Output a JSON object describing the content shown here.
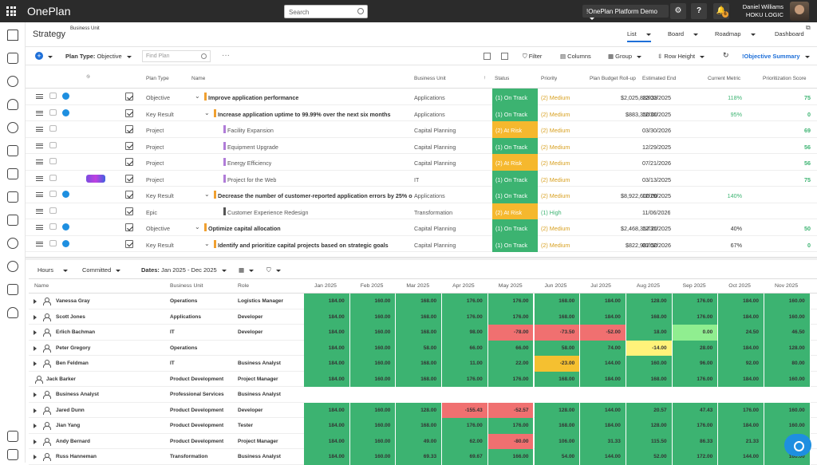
{
  "app": {
    "brand": "OnePlan",
    "search_placeholder": "Search",
    "platform": "!OnePlan Platform Demo",
    "user_name": "Daniel Williams",
    "user_org": "HOKU LOGIC",
    "notif_count": "6"
  },
  "header": {
    "title": "Strategy",
    "business_unit_label": "Business Unit",
    "views": [
      "List",
      "Board",
      "Roadmap",
      "Dashboard"
    ]
  },
  "toolbar": {
    "plan_type_label": "Plan Type:",
    "plan_type_value": "Objective",
    "find_placeholder": "Find Plan",
    "more": "···",
    "filter": "Filter",
    "columns": "Columns",
    "group": "Group",
    "row_height": "Row Height",
    "summary": "!Objective Summary"
  },
  "table1": {
    "headers": [
      "Plan Type",
      "Name",
      "Business Unit",
      "Status",
      "Priority",
      "Plan Budget Roll-up",
      "Estimated End",
      "Current Metric",
      "Prioritization Score"
    ],
    "rows": [
      {
        "type": "Objective",
        "name": "Improve application performance",
        "bu": "Applications",
        "status": "(1) On Track",
        "status_color": "#3cb371",
        "priority": "(2) Medium",
        "budget": "$2,025,883.33",
        "end": "12/01/2025",
        "metric": "118%",
        "score": "75",
        "level": 0,
        "expand": true,
        "bar": "#f0a030",
        "add": true,
        "bold": true
      },
      {
        "type": "Key Result",
        "name": "Increase application uptime to 99.99% over the next six months",
        "bu": "Applications",
        "status": "(1) On Track",
        "status_color": "#3cb371",
        "priority": "(2) Medium",
        "budget": "$883,350.00",
        "end": "12/31/2025",
        "metric": "95%",
        "score": "0",
        "level": 1,
        "expand": true,
        "bar": "#f0a030",
        "add": true,
        "bold": true
      },
      {
        "type": "Project",
        "name": "Facility Expansion",
        "bu": "Capital Planning",
        "status": "(2) At Risk",
        "status_color": "#f5b82e",
        "priority": "(2) Medium",
        "budget": "",
        "end": "03/30/2026",
        "metric": "",
        "score": "69",
        "level": 2,
        "expand": false,
        "bar": "#b07cd8",
        "add": false,
        "bold": false
      },
      {
        "type": "Project",
        "name": "Equipment Upgrade",
        "bu": "Capital Planning",
        "status": "(1) On Track",
        "status_color": "#3cb371",
        "priority": "(2) Medium",
        "budget": "",
        "end": "12/29/2025",
        "metric": "",
        "score": "56",
        "level": 2,
        "expand": false,
        "bar": "#b07cd8",
        "add": false,
        "bold": false
      },
      {
        "type": "Project",
        "name": "Energy Efficiency",
        "bu": "Capital Planning",
        "status": "(2) At Risk",
        "status_color": "#f5b82e",
        "priority": "(2) Medium",
        "budget": "",
        "end": "07/21/2026",
        "metric": "",
        "score": "56",
        "level": 2,
        "expand": false,
        "bar": "#b07cd8",
        "add": false,
        "bold": false
      },
      {
        "type": "Project",
        "name": "Project for the Web",
        "bu": "IT",
        "status": "(1) On Track",
        "status_color": "#3cb371",
        "priority": "(2) Medium",
        "budget": "",
        "end": "03/13/2025",
        "metric": "",
        "score": "75",
        "level": 2,
        "expand": false,
        "bar": "#b07cd8",
        "add": false,
        "bold": false,
        "badge": true
      },
      {
        "type": "Key Result",
        "name": "Decrease the number of customer-reported application errors by 25% o",
        "bu": "Applications",
        "status": "(1) On Track",
        "status_color": "#3cb371",
        "priority": "(2) Medium",
        "budget": "$8,922,600.00",
        "end": "12/29/2025",
        "metric": "140%",
        "score": "",
        "level": 1,
        "expand": true,
        "bar": "#f0a030",
        "add": true,
        "bold": true
      },
      {
        "type": "Epic",
        "name": "Customer Experience Redesign",
        "bu": "Transformation",
        "status": "(2) At Risk",
        "status_color": "#f5b82e",
        "priority": "(1) High",
        "budget": "",
        "end": "11/06/2026",
        "metric": "",
        "score": "",
        "level": 2,
        "expand": false,
        "bar": "#555555",
        "add": false,
        "bold": false
      },
      {
        "type": "Objective",
        "name": "Optimize capital allocation",
        "bu": "Capital Planning",
        "status": "(1) On Track",
        "status_color": "#3cb371",
        "priority": "(2) Medium",
        "budget": "$2,468,357.20",
        "end": "12/31/2025",
        "metric": "40%",
        "score": "50",
        "level": 0,
        "expand": true,
        "bar": "#f0a030",
        "add": true,
        "bold": true
      },
      {
        "type": "Key Result",
        "name": "Identify and prioritize capital projects based on strategic goals",
        "bu": "Capital Planning",
        "status": "(1) On Track",
        "status_color": "#3cb371",
        "priority": "(2) Medium",
        "budget": "$822,987.50",
        "end": "01/02/2026",
        "metric": "67%",
        "score": "0",
        "level": 1,
        "expand": true,
        "bar": "#f0a030",
        "add": true,
        "bold": true
      }
    ]
  },
  "filters2": {
    "hours": "Hours",
    "committed": "Committed",
    "dates_label": "Dates:",
    "dates_value": "Jan 2025 - Dec 2025"
  },
  "table2": {
    "headers": [
      "Name",
      "Business Unit",
      "Role"
    ],
    "months": [
      "Jan 2025",
      "Feb 2025",
      "Mar 2025",
      "Apr 2025",
      "May 2025",
      "Jun 2025",
      "Jul 2025",
      "Aug 2025",
      "Sep 2025",
      "Oct 2025",
      "Nov 2025"
    ],
    "rows": [
      {
        "name": "Vanessa Gray",
        "bu": "Operations",
        "role": "Logistics Manager",
        "expand": true,
        "values": [
          "184.00",
          "160.00",
          "168.00",
          "176.00",
          "176.00",
          "168.00",
          "184.00",
          "128.00",
          "176.00",
          "184.00",
          "160.00"
        ],
        "colors": [
          "g",
          "g",
          "g",
          "g",
          "g",
          "g",
          "g",
          "g",
          "g",
          "g",
          "g"
        ]
      },
      {
        "name": "Scott Jones",
        "bu": "Applications",
        "role": "Developer",
        "expand": true,
        "values": [
          "184.00",
          "160.00",
          "168.00",
          "176.00",
          "176.00",
          "168.00",
          "184.00",
          "168.00",
          "176.00",
          "184.00",
          "160.00"
        ],
        "colors": [
          "g",
          "g",
          "g",
          "g",
          "g",
          "g",
          "g",
          "g",
          "g",
          "g",
          "g"
        ]
      },
      {
        "name": "Erlich Bachman",
        "bu": "IT",
        "role": "Developer",
        "expand": true,
        "values": [
          "184.00",
          "160.00",
          "168.00",
          "98.00",
          "-78.00",
          "-73.50",
          "-52.00",
          "18.00",
          "0.00",
          "24.50",
          "46.50"
        ],
        "colors": [
          "g",
          "g",
          "g",
          "g",
          "r",
          "r",
          "r",
          "g",
          "lg",
          "g",
          "g"
        ]
      },
      {
        "name": "Peter Gregory",
        "bu": "Operations",
        "role": "",
        "expand": true,
        "values": [
          "184.00",
          "160.00",
          "58.00",
          "66.00",
          "66.00",
          "58.00",
          "74.00",
          "-14.00",
          "28.00",
          "184.00",
          "128.00"
        ],
        "colors": [
          "g",
          "g",
          "g",
          "g",
          "g",
          "g",
          "g",
          "y",
          "g",
          "g",
          "g"
        ]
      },
      {
        "name": "Ben Feldman",
        "bu": "IT",
        "role": "Business Analyst",
        "expand": true,
        "values": [
          "184.00",
          "160.00",
          "168.00",
          "11.00",
          "22.00",
          "-23.00",
          "144.00",
          "160.00",
          "96.00",
          "92.00",
          "80.00"
        ],
        "colors": [
          "g",
          "g",
          "g",
          "g",
          "g",
          "o",
          "g",
          "g",
          "g",
          "g",
          "g"
        ]
      },
      {
        "name": "Jack Barker",
        "bu": "Product Development",
        "role": "Project Manager",
        "expand": false,
        "values": [
          "184.00",
          "160.00",
          "168.00",
          "176.00",
          "176.00",
          "168.00",
          "184.00",
          "168.00",
          "176.00",
          "184.00",
          "160.00"
        ],
        "colors": [
          "g",
          "g",
          "g",
          "g",
          "g",
          "g",
          "g",
          "g",
          "g",
          "g",
          "g"
        ]
      },
      {
        "name": "Business Analyst",
        "bu": "Professional Services",
        "role": "Business Analyst",
        "expand": true,
        "values": [
          "",
          "",
          "",
          "",
          "",
          "",
          "",
          "",
          "",
          "",
          ""
        ],
        "colors": [
          "w",
          "w",
          "w",
          "w",
          "w",
          "w",
          "w",
          "w",
          "w",
          "w",
          "w"
        ]
      },
      {
        "name": "Jared Dunn",
        "bu": "Product Development",
        "role": "Developer",
        "expand": true,
        "values": [
          "184.00",
          "160.00",
          "128.00",
          "-155.43",
          "-52.57",
          "128.00",
          "144.00",
          "20.57",
          "47.43",
          "176.00",
          "160.00"
        ],
        "colors": [
          "g",
          "g",
          "g",
          "r",
          "r",
          "g",
          "g",
          "g",
          "g",
          "g",
          "g"
        ]
      },
      {
        "name": "Jian Yang",
        "bu": "Product Development",
        "role": "Tester",
        "expand": true,
        "values": [
          "184.00",
          "160.00",
          "168.00",
          "176.00",
          "176.00",
          "168.00",
          "184.00",
          "128.00",
          "176.00",
          "184.00",
          "160.00"
        ],
        "colors": [
          "g",
          "g",
          "g",
          "g",
          "g",
          "g",
          "g",
          "g",
          "g",
          "g",
          "g"
        ]
      },
      {
        "name": "Andy Bernard",
        "bu": "Product Development",
        "role": "Project Manager",
        "expand": true,
        "values": [
          "184.00",
          "160.00",
          "49.00",
          "62.00",
          "-80.00",
          "106.00",
          "31.33",
          "115.50",
          "86.33",
          "21.33",
          "160.00"
        ],
        "colors": [
          "g",
          "g",
          "g",
          "g",
          "r",
          "g",
          "g",
          "g",
          "g",
          "g",
          "g"
        ]
      },
      {
        "name": "Russ Hanneman",
        "bu": "Transformation",
        "role": "Business Analyst",
        "expand": true,
        "values": [
          "184.00",
          "160.00",
          "69.33",
          "69.67",
          "166.00",
          "54.00",
          "144.00",
          "52.00",
          "172.00",
          "144.00",
          "160.00"
        ],
        "colors": [
          "g",
          "g",
          "g",
          "g",
          "g",
          "g",
          "g",
          "g",
          "g",
          "g",
          "g"
        ]
      }
    ]
  },
  "colors": {
    "green": "#3cb371",
    "red": "#f07070",
    "light_green": "#90ee90",
    "yellow": "#fff27a",
    "orange": "#f5c030",
    "accent": "#1e6fd8"
  }
}
